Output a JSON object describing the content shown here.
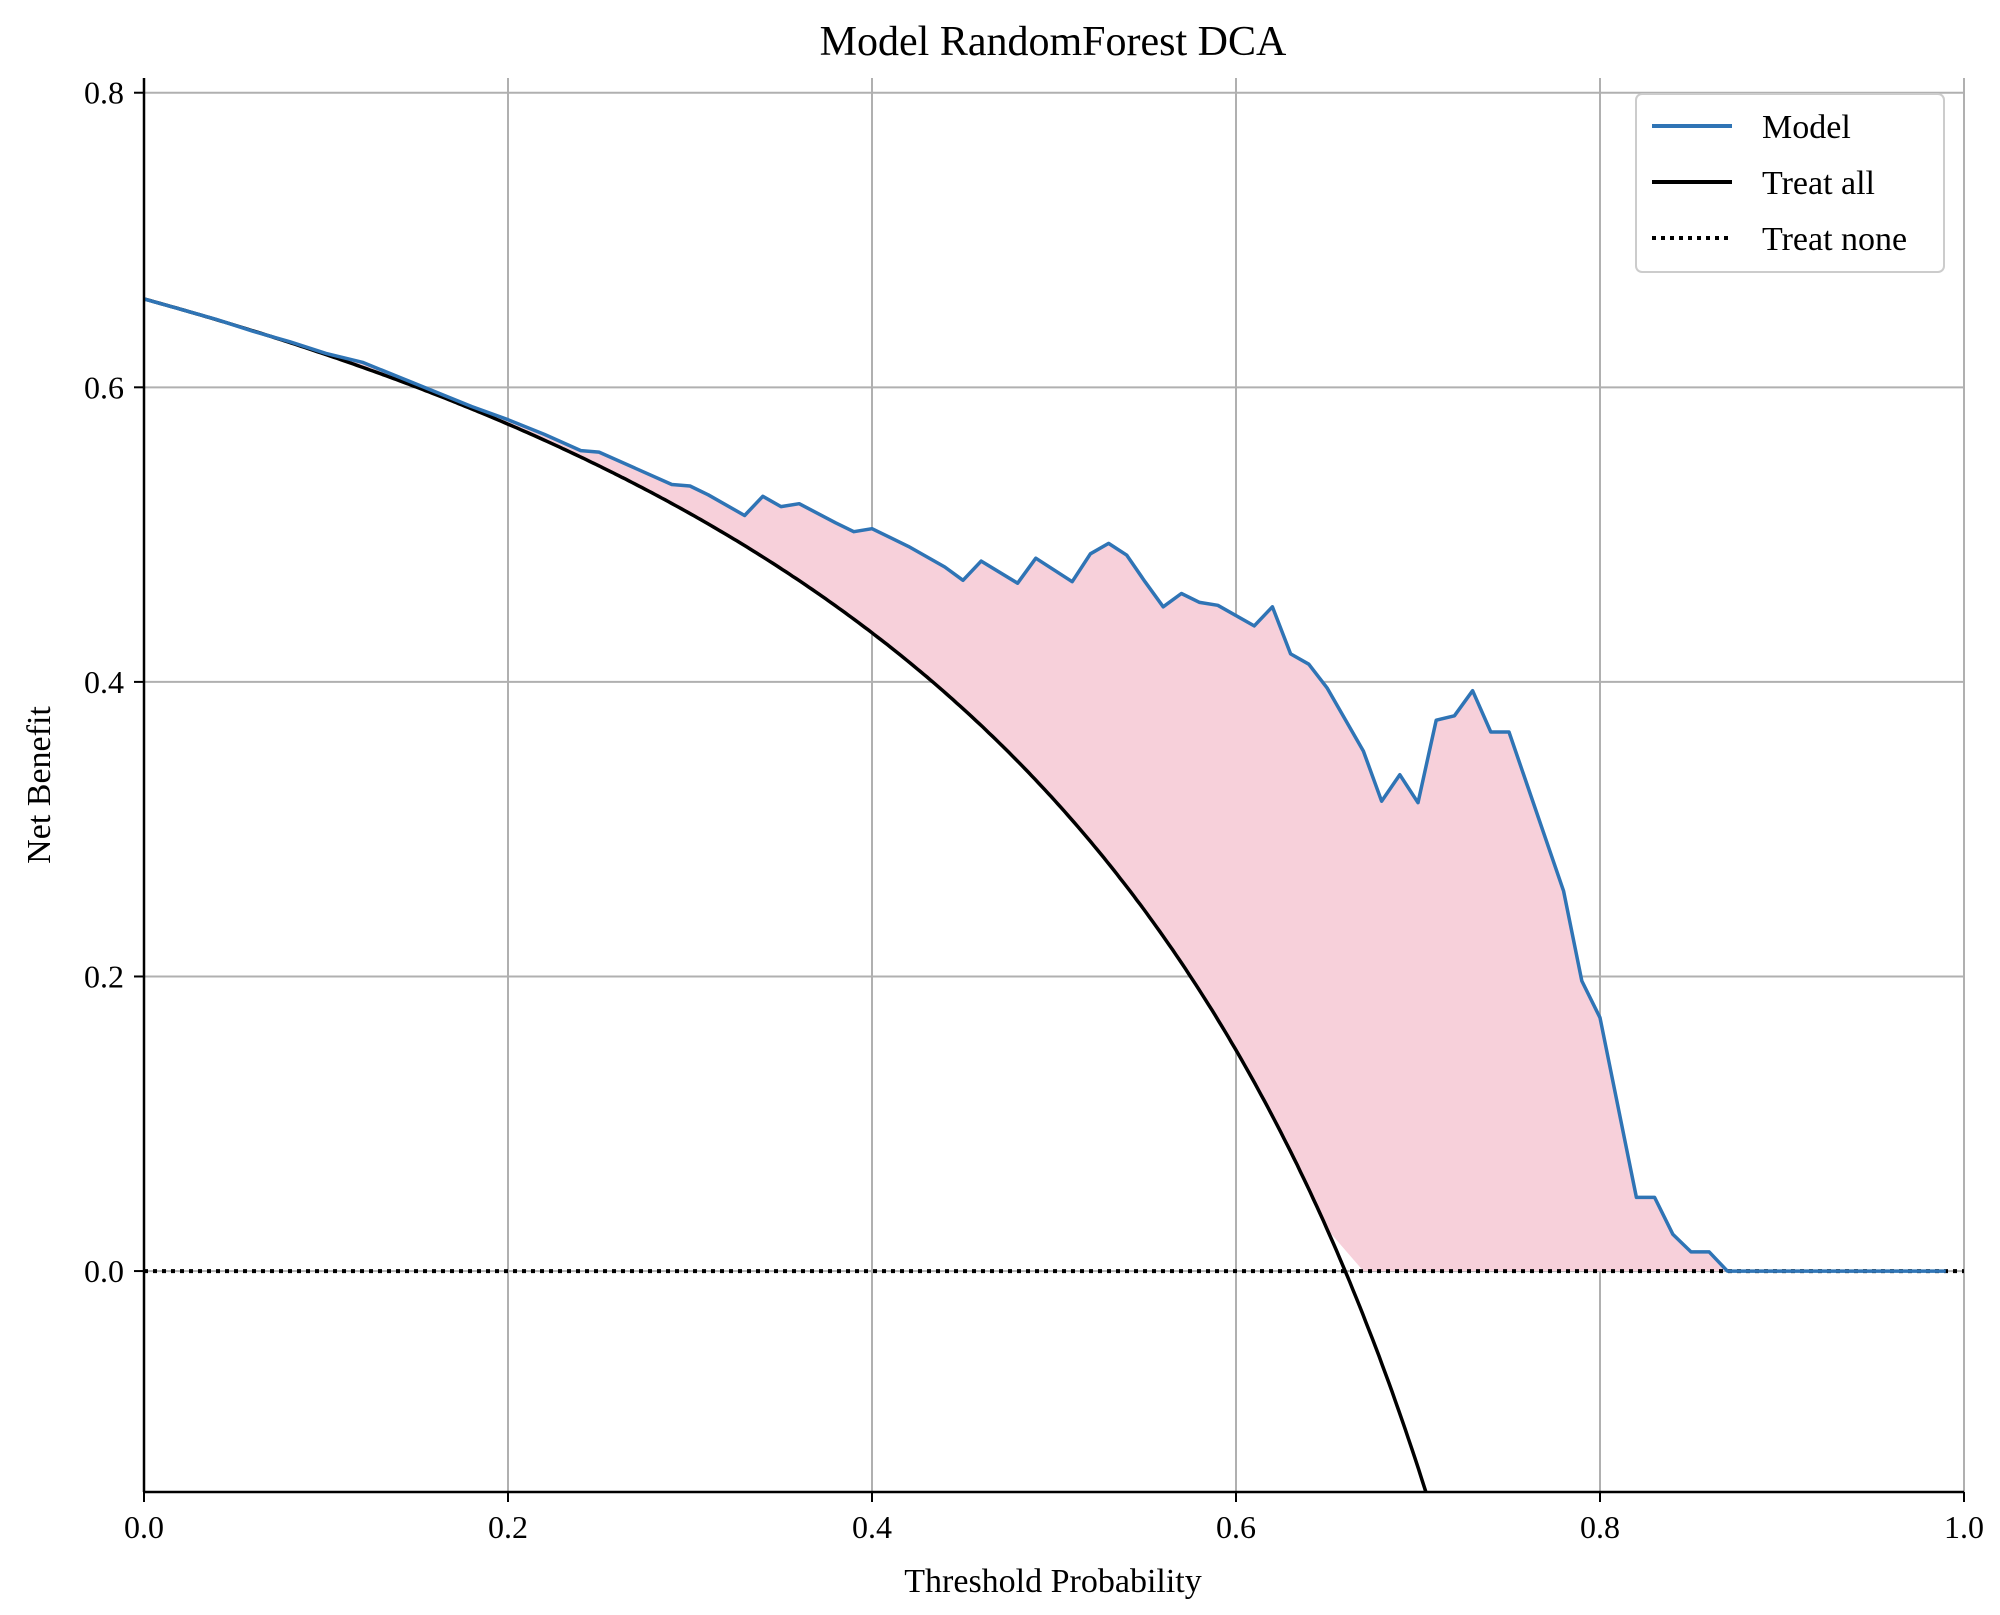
{
  "chart_data": {
    "type": "line",
    "title": "Model RandomForest DCA",
    "xlabel": "Threshold Probability",
    "ylabel": "Net Benefit",
    "xlim": [
      0.0,
      1.0
    ],
    "ylim": [
      -0.15,
      0.81
    ],
    "xticks": [
      0.0,
      0.2,
      0.4,
      0.6,
      0.8,
      1.0
    ],
    "xtick_labels": [
      "0.0",
      "0.2",
      "0.4",
      "0.6",
      "0.8",
      "1.0"
    ],
    "yticks": [
      0.0,
      0.2,
      0.4,
      0.6,
      0.8
    ],
    "ytick_labels": [
      "0.0",
      "0.2",
      "0.4",
      "0.6",
      "0.8"
    ],
    "grid": true,
    "legend_position": "top-right",
    "prevalence": 0.66,
    "colors": {
      "model": "#2f74b5",
      "treat_all": "#000000",
      "treat_none": "#000000",
      "fill": "#f7d0da",
      "grid": "#b0b0b0"
    },
    "series": [
      {
        "name": "Model",
        "style": "solid",
        "x": [
          0.0,
          0.02,
          0.04,
          0.06,
          0.08,
          0.1,
          0.12,
          0.14,
          0.16,
          0.18,
          0.2,
          0.22,
          0.24,
          0.25,
          0.27,
          0.29,
          0.3,
          0.31,
          0.33,
          0.34,
          0.35,
          0.36,
          0.38,
          0.39,
          0.4,
          0.42,
          0.44,
          0.45,
          0.46,
          0.48,
          0.49,
          0.51,
          0.52,
          0.53,
          0.54,
          0.55,
          0.56,
          0.57,
          0.58,
          0.59,
          0.61,
          0.62,
          0.63,
          0.64,
          0.65,
          0.67,
          0.68,
          0.69,
          0.7,
          0.71,
          0.72,
          0.73,
          0.74,
          0.75,
          0.76,
          0.78,
          0.79,
          0.8,
          0.82,
          0.83,
          0.84,
          0.85,
          0.86,
          0.87,
          0.9,
          0.95,
          0.99
        ],
        "y": [
          0.66,
          0.653,
          0.646,
          0.638,
          0.631,
          0.623,
          0.617,
          0.607,
          0.597,
          0.587,
          0.578,
          0.568,
          0.557,
          0.556,
          0.545,
          0.534,
          0.533,
          0.527,
          0.513,
          0.526,
          0.519,
          0.521,
          0.508,
          0.502,
          0.504,
          0.492,
          0.478,
          0.469,
          0.482,
          0.467,
          0.484,
          0.468,
          0.487,
          0.494,
          0.486,
          0.468,
          0.451,
          0.46,
          0.454,
          0.452,
          0.438,
          0.451,
          0.419,
          0.412,
          0.396,
          0.353,
          0.319,
          0.337,
          0.318,
          0.374,
          0.377,
          0.394,
          0.366,
          0.366,
          0.33,
          0.258,
          0.197,
          0.172,
          0.05,
          0.05,
          0.025,
          0.013,
          0.013,
          0.0,
          0.0,
          0.0,
          0.0
        ]
      },
      {
        "name": "Treat all",
        "style": "solid",
        "formula": "prevalence - (1 - prevalence) * x / (1 - x)"
      },
      {
        "name": "Treat none",
        "style": "dotted",
        "x": [
          0.0,
          1.0
        ],
        "y": [
          0.0,
          0.0
        ]
      }
    ]
  }
}
